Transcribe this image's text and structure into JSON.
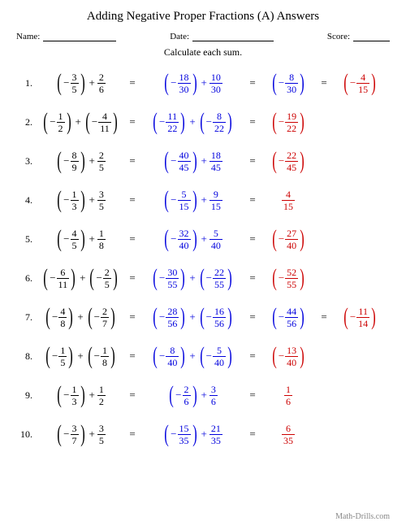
{
  "title": "Adding Negative Proper Fractions (A) Answers",
  "labels": {
    "name": "Name:",
    "date": "Date:",
    "score": "Score:"
  },
  "instruction": "Calculate each sum.",
  "footer": "Math-Drills.com",
  "line_widths": {
    "name": 90,
    "date": 100,
    "score": 45
  },
  "colors": {
    "original": "#000000",
    "step": "#0000dd",
    "answer": "#cc0000"
  },
  "problems": [
    {
      "n": "1.",
      "c1": {
        "a": {
          "neg": true,
          "paren": true,
          "num": "3",
          "den": "5"
        },
        "b": {
          "neg": false,
          "paren": false,
          "num": "2",
          "den": "6"
        }
      },
      "c2": {
        "a": {
          "neg": true,
          "paren": true,
          "num": "18",
          "den": "30"
        },
        "b": {
          "neg": false,
          "paren": false,
          "num": "10",
          "den": "30"
        }
      },
      "c3": {
        "neg": true,
        "paren": true,
        "num": "8",
        "den": "30",
        "color": "blue"
      },
      "c4": {
        "neg": true,
        "paren": true,
        "num": "4",
        "den": "15",
        "color": "red"
      }
    },
    {
      "n": "2.",
      "c1": {
        "a": {
          "neg": true,
          "paren": true,
          "num": "1",
          "den": "2"
        },
        "b": {
          "neg": true,
          "paren": true,
          "num": "4",
          "den": "11"
        }
      },
      "c2": {
        "a": {
          "neg": true,
          "paren": true,
          "num": "11",
          "den": "22"
        },
        "b": {
          "neg": true,
          "paren": true,
          "num": "8",
          "den": "22"
        }
      },
      "c3": {
        "neg": true,
        "paren": true,
        "num": "19",
        "den": "22",
        "color": "red"
      },
      "c4": null
    },
    {
      "n": "3.",
      "c1": {
        "a": {
          "neg": true,
          "paren": true,
          "num": "8",
          "den": "9"
        },
        "b": {
          "neg": false,
          "paren": false,
          "num": "2",
          "den": "5"
        }
      },
      "c2": {
        "a": {
          "neg": true,
          "paren": true,
          "num": "40",
          "den": "45"
        },
        "b": {
          "neg": false,
          "paren": false,
          "num": "18",
          "den": "45"
        }
      },
      "c3": {
        "neg": true,
        "paren": true,
        "num": "22",
        "den": "45",
        "color": "red"
      },
      "c4": null
    },
    {
      "n": "4.",
      "c1": {
        "a": {
          "neg": true,
          "paren": true,
          "num": "1",
          "den": "3"
        },
        "b": {
          "neg": false,
          "paren": false,
          "num": "3",
          "den": "5"
        }
      },
      "c2": {
        "a": {
          "neg": true,
          "paren": true,
          "num": "5",
          "den": "15"
        },
        "b": {
          "neg": false,
          "paren": false,
          "num": "9",
          "den": "15"
        }
      },
      "c3": {
        "neg": false,
        "paren": false,
        "num": "4",
        "den": "15",
        "color": "red"
      },
      "c4": null
    },
    {
      "n": "5.",
      "c1": {
        "a": {
          "neg": true,
          "paren": true,
          "num": "4",
          "den": "5"
        },
        "b": {
          "neg": false,
          "paren": false,
          "num": "1",
          "den": "8"
        }
      },
      "c2": {
        "a": {
          "neg": true,
          "paren": true,
          "num": "32",
          "den": "40"
        },
        "b": {
          "neg": false,
          "paren": false,
          "num": "5",
          "den": "40"
        }
      },
      "c3": {
        "neg": true,
        "paren": true,
        "num": "27",
        "den": "40",
        "color": "red"
      },
      "c4": null
    },
    {
      "n": "6.",
      "c1": {
        "a": {
          "neg": true,
          "paren": true,
          "num": "6",
          "den": "11"
        },
        "b": {
          "neg": true,
          "paren": true,
          "num": "2",
          "den": "5"
        }
      },
      "c2": {
        "a": {
          "neg": true,
          "paren": true,
          "num": "30",
          "den": "55"
        },
        "b": {
          "neg": true,
          "paren": true,
          "num": "22",
          "den": "55"
        }
      },
      "c3": {
        "neg": true,
        "paren": true,
        "num": "52",
        "den": "55",
        "color": "red"
      },
      "c4": null
    },
    {
      "n": "7.",
      "c1": {
        "a": {
          "neg": true,
          "paren": true,
          "num": "4",
          "den": "8"
        },
        "b": {
          "neg": true,
          "paren": true,
          "num": "2",
          "den": "7"
        }
      },
      "c2": {
        "a": {
          "neg": true,
          "paren": true,
          "num": "28",
          "den": "56"
        },
        "b": {
          "neg": true,
          "paren": true,
          "num": "16",
          "den": "56"
        }
      },
      "c3": {
        "neg": true,
        "paren": true,
        "num": "44",
        "den": "56",
        "color": "blue"
      },
      "c4": {
        "neg": true,
        "paren": true,
        "num": "11",
        "den": "14",
        "color": "red"
      }
    },
    {
      "n": "8.",
      "c1": {
        "a": {
          "neg": true,
          "paren": true,
          "num": "1",
          "den": "5"
        },
        "b": {
          "neg": true,
          "paren": true,
          "num": "1",
          "den": "8"
        }
      },
      "c2": {
        "a": {
          "neg": true,
          "paren": true,
          "num": "8",
          "den": "40"
        },
        "b": {
          "neg": true,
          "paren": true,
          "num": "5",
          "den": "40"
        }
      },
      "c3": {
        "neg": true,
        "paren": true,
        "num": "13",
        "den": "40",
        "color": "red"
      },
      "c4": null
    },
    {
      "n": "9.",
      "c1": {
        "a": {
          "neg": true,
          "paren": true,
          "num": "1",
          "den": "3"
        },
        "b": {
          "neg": false,
          "paren": false,
          "num": "1",
          "den": "2"
        }
      },
      "c2": {
        "a": {
          "neg": true,
          "paren": true,
          "num": "2",
          "den": "6"
        },
        "b": {
          "neg": false,
          "paren": false,
          "num": "3",
          "den": "6"
        }
      },
      "c3": {
        "neg": false,
        "paren": false,
        "num": "1",
        "den": "6",
        "color": "red"
      },
      "c4": null
    },
    {
      "n": "10.",
      "c1": {
        "a": {
          "neg": true,
          "paren": true,
          "num": "3",
          "den": "7"
        },
        "b": {
          "neg": false,
          "paren": false,
          "num": "3",
          "den": "5"
        }
      },
      "c2": {
        "a": {
          "neg": true,
          "paren": true,
          "num": "15",
          "den": "35"
        },
        "b": {
          "neg": false,
          "paren": false,
          "num": "21",
          "den": "35"
        }
      },
      "c3": {
        "neg": false,
        "paren": false,
        "num": "6",
        "den": "35",
        "color": "red"
      },
      "c4": null
    }
  ]
}
